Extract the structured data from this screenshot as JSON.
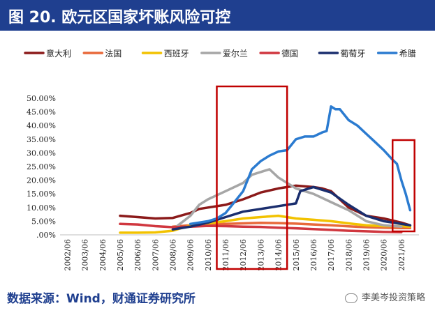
{
  "header": {
    "title": "图 20. 欧元区国家坏账风险可控"
  },
  "footer": {
    "source": "数据来源：Wind，财通证券研究所",
    "brand": "李美岑投资策略"
  },
  "colors": {
    "title_bg": "#1f3f8f",
    "highlight_box": "#c00000",
    "series": {
      "意大利": "#8b1a1a",
      "法国": "#e8693a",
      "西班牙": "#f2c200",
      "爱尔兰": "#a6a6a6",
      "德国": "#d0373f",
      "葡萄牙": "#1a2e6e",
      "希腊": "#2b7bd0"
    }
  },
  "chart_data": {
    "type": "line",
    "legend_position": "top",
    "grid": false,
    "ylim": [
      0,
      50
    ],
    "y_ticks": [
      "50.00%",
      "45.00%",
      "40.00%",
      "35.00%",
      "30.00%",
      "25.00%",
      "20.00%",
      "15.00%",
      "10.00%",
      "5.00%",
      ".00%"
    ],
    "x_ticks": [
      "2002/06",
      "2003/06",
      "2004/06",
      "2005/06",
      "2006/06",
      "2007/06",
      "2008/06",
      "2009/06",
      "2010/06",
      "2011/06",
      "2012/06",
      "2013/06",
      "2014/06",
      "2015/06",
      "2016/06",
      "2017/06",
      "2018/06",
      "2019/06",
      "2020/06",
      "2021/06"
    ],
    "x_range": [
      "2002/01",
      "2022/06"
    ],
    "highlight_ranges": [
      [
        "2010/12",
        "2014/12"
      ],
      [
        "2020/12",
        "2022/03"
      ]
    ],
    "series": [
      {
        "name": "意大利",
        "color": "#8b1a1a",
        "x": [
          "2005/06",
          "2006/06",
          "2007/06",
          "2008/06",
          "2009/06",
          "2009/12",
          "2010/06",
          "2011/06",
          "2012/06",
          "2013/06",
          "2014/06",
          "2015/06",
          "2016/06",
          "2016/12",
          "2017/06",
          "2018/06",
          "2019/06",
          "2020/06",
          "2021/06",
          "2021/12"
        ],
        "y": [
          7,
          6.5,
          6,
          6.2,
          8,
          9.5,
          10,
          11,
          13,
          15.5,
          17,
          18,
          17.5,
          17,
          16,
          10,
          7,
          6,
          4.5,
          3.5
        ]
      },
      {
        "name": "法国",
        "color": "#e8693a",
        "x": [
          "2008/06",
          "2009/06",
          "2010/06",
          "2011/06",
          "2012/06",
          "2013/06",
          "2014/06",
          "2015/06",
          "2016/06",
          "2017/06",
          "2018/06",
          "2019/06",
          "2020/06",
          "2021/06",
          "2021/12"
        ],
        "y": [
          3,
          3.5,
          3.8,
          4,
          4.2,
          4.4,
          4.3,
          4.1,
          3.8,
          3.5,
          3.1,
          2.8,
          2.6,
          2.5,
          2.5
        ]
      },
      {
        "name": "西班牙",
        "color": "#f2c200",
        "x": [
          "2005/06",
          "2006/06",
          "2007/06",
          "2008/06",
          "2009/06",
          "2010/06",
          "2011/06",
          "2012/06",
          "2013/06",
          "2014/06",
          "2015/06",
          "2016/06",
          "2017/06",
          "2018/06",
          "2019/06",
          "2020/06",
          "2021/06",
          "2021/12"
        ],
        "y": [
          0.8,
          0.8,
          0.9,
          1.5,
          3.5,
          4.2,
          5,
          6,
          6.5,
          7,
          6,
          5.5,
          5,
          4.2,
          3.5,
          3.2,
          3.2,
          3
        ]
      },
      {
        "name": "爱尔兰",
        "color": "#a6a6a6",
        "x": [
          "2008/06",
          "2009/06",
          "2009/12",
          "2010/06",
          "2011/06",
          "2012/06",
          "2012/12",
          "2013/06",
          "2013/12",
          "2014/06",
          "2015/06",
          "2016/06",
          "2017/06",
          "2018/06",
          "2019/06",
          "2020/06",
          "2021/06"
        ],
        "y": [
          2,
          7,
          11,
          13,
          16,
          19,
          22,
          23,
          24,
          21,
          17,
          15,
          12,
          9,
          5,
          3.5,
          3
        ]
      },
      {
        "name": "德国",
        "color": "#d0373f",
        "x": [
          "2005/06",
          "2006/06",
          "2007/06",
          "2008/06",
          "2009/06",
          "2010/06",
          "2011/06",
          "2012/06",
          "2013/06",
          "2014/06",
          "2015/06",
          "2016/06",
          "2017/06",
          "2018/06",
          "2019/06",
          "2020/06",
          "2021/06"
        ],
        "y": [
          4,
          3.8,
          3.2,
          2.8,
          3,
          3.3,
          3.2,
          3,
          2.9,
          2.6,
          2.4,
          2.1,
          1.8,
          1.5,
          1.3,
          1.1,
          1
        ]
      },
      {
        "name": "葡萄牙",
        "color": "#1a2e6e",
        "x": [
          "2008/06",
          "2009/06",
          "2010/06",
          "2011/06",
          "2012/06",
          "2013/06",
          "2014/06",
          "2015/06",
          "2015/09",
          "2016/06",
          "2017/06",
          "2018/06",
          "2019/06",
          "2020/06",
          "2021/06",
          "2021/12"
        ],
        "y": [
          2,
          3,
          4.5,
          6.5,
          8.5,
          9.5,
          10.5,
          11.5,
          16,
          17.5,
          15.5,
          11,
          7,
          5,
          4,
          3.5
        ]
      },
      {
        "name": "希腊",
        "color": "#2b7bd0",
        "x": [
          "2009/06",
          "2010/06",
          "2010/12",
          "2011/06",
          "2011/12",
          "2012/06",
          "2012/12",
          "2013/06",
          "2013/12",
          "2014/06",
          "2014/12",
          "2015/06",
          "2015/12",
          "2016/06",
          "2016/12",
          "2017/03",
          "2017/06",
          "2017/09",
          "2017/12",
          "2018/06",
          "2018/12",
          "2019/06",
          "2019/12",
          "2020/06",
          "2020/12",
          "2021/03",
          "2021/06",
          "2021/09",
          "2021/12"
        ],
        "y": [
          4,
          5,
          6,
          8,
          12,
          16,
          24,
          27,
          29,
          30.5,
          31,
          35,
          36,
          36,
          37.5,
          38,
          47,
          46,
          46,
          42,
          40,
          37,
          34,
          31,
          27.5,
          26,
          20,
          15,
          9
        ]
      }
    ]
  }
}
